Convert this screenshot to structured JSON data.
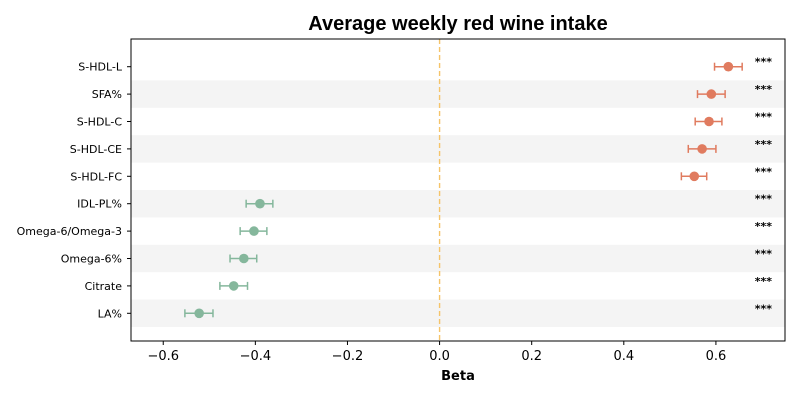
{
  "chart_data": {
    "type": "forest",
    "title": "Average weekly red wine intake",
    "xlabel": "Beta",
    "ylabel": "",
    "xlim": [
      -0.67,
      0.75
    ],
    "xticks": [
      -0.6,
      -0.4,
      -0.2,
      0.0,
      0.2,
      0.4,
      0.6
    ],
    "xtick_labels": [
      "−0.6",
      "−0.4",
      "−0.2",
      "0.0",
      "0.2",
      "0.4",
      "0.6"
    ],
    "reference_line": 0.0,
    "colors": {
      "positive": "#e07b5f",
      "negative": "#85b79c",
      "reference": "#f5c46a",
      "band": "#f4f4f4"
    },
    "rows": [
      {
        "label": "S-HDL-L",
        "beta": 0.627,
        "lo": 0.597,
        "hi": 0.657,
        "sig": "***"
      },
      {
        "label": "SFA%",
        "beta": 0.59,
        "lo": 0.56,
        "hi": 0.62,
        "sig": "***"
      },
      {
        "label": "S-HDL-C",
        "beta": 0.585,
        "lo": 0.555,
        "hi": 0.613,
        "sig": "***"
      },
      {
        "label": "S-HDL-CE",
        "beta": 0.57,
        "lo": 0.54,
        "hi": 0.6,
        "sig": "***"
      },
      {
        "label": "S-HDL-FC",
        "beta": 0.553,
        "lo": 0.525,
        "hi": 0.58,
        "sig": "***"
      },
      {
        "label": "IDL-PL%",
        "beta": -0.39,
        "lo": -0.42,
        "hi": -0.362,
        "sig": "***"
      },
      {
        "label": "Omega-6/Omega-3",
        "beta": -0.403,
        "lo": -0.433,
        "hi": -0.375,
        "sig": "***"
      },
      {
        "label": "Omega-6%",
        "beta": -0.425,
        "lo": -0.455,
        "hi": -0.397,
        "sig": "***"
      },
      {
        "label": "Citrate",
        "beta": -0.447,
        "lo": -0.477,
        "hi": -0.417,
        "sig": "***"
      },
      {
        "label": "LA%",
        "beta": -0.522,
        "lo": -0.553,
        "hi": -0.492,
        "sig": "***"
      }
    ]
  }
}
